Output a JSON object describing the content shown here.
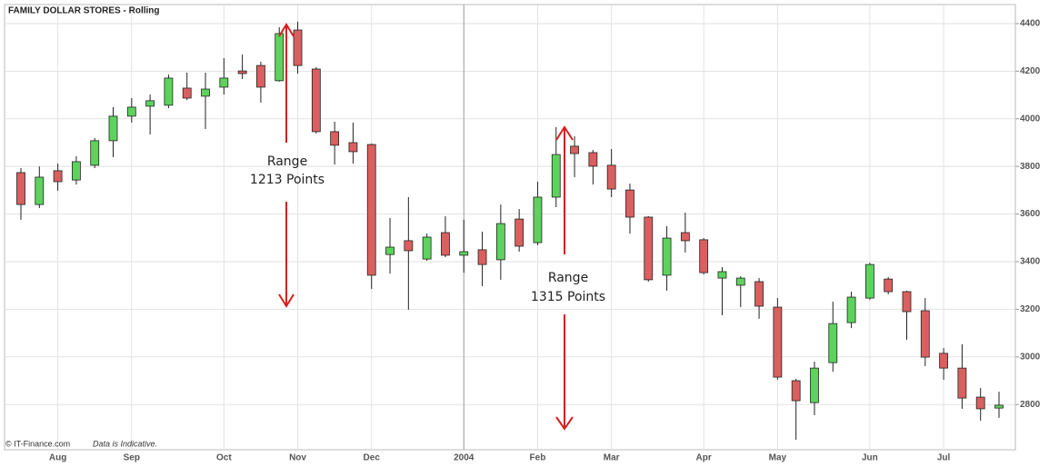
{
  "chart_data": {
    "type": "candlestick",
    "title": "FAMILY DOLLAR STORES - Rolling",
    "categories": [
      null,
      null,
      "Aug",
      null,
      null,
      null,
      "Sep",
      null,
      null,
      null,
      null,
      "Oct",
      null,
      null,
      null,
      "Nov",
      null,
      null,
      null,
      "Dec",
      null,
      null,
      null,
      null,
      "2004",
      null,
      null,
      null,
      "Feb",
      null,
      null,
      null,
      "Mar",
      null,
      null,
      null,
      null,
      "Apr",
      null,
      null,
      null,
      "May",
      null,
      null,
      null,
      null,
      "Jun",
      null,
      null,
      null,
      "Jul",
      null,
      null,
      null
    ],
    "open": [
      3774,
      3640,
      3782,
      3743,
      3805,
      3908,
      4011,
      4053,
      4057,
      4129,
      4095,
      4133,
      4201,
      4224,
      4160,
      4373,
      4209,
      3946,
      3900,
      3892,
      3430,
      3488,
      3411,
      3522,
      3427,
      3450,
      3408,
      3579,
      3480,
      3671,
      3885,
      3858,
      3805,
      3701,
      3587,
      3343,
      3522,
      3492,
      3331,
      3301,
      3316,
      3209,
      2900,
      2808,
      2976,
      3144,
      3247,
      3327,
      3274,
      3194,
      3015,
      2953,
      2831,
      2785
    ],
    "high": [
      3793,
      3800,
      3812,
      3843,
      3919,
      4049,
      4087,
      4102,
      4186,
      4194,
      4194,
      4255,
      4270,
      4240,
      4385,
      4408,
      4217,
      3988,
      3984,
      3896,
      3583,
      3671,
      3518,
      3591,
      3576,
      3526,
      3640,
      3621,
      3736,
      3965,
      3927,
      3869,
      3873,
      3728,
      3591,
      3549,
      3606,
      3499,
      3377,
      3339,
      3331,
      3247,
      2908,
      2980,
      3232,
      3274,
      3396,
      3335,
      3278,
      3247,
      3037,
      3053,
      2869,
      2854
    ],
    "low": [
      3576,
      3625,
      3698,
      3724,
      3793,
      3839,
      3984,
      3934,
      4045,
      4079,
      3957,
      4102,
      4167,
      4068,
      4156,
      4190,
      3938,
      3808,
      3812,
      3285,
      3350,
      3198,
      3404,
      3419,
      3354,
      3297,
      3324,
      3442,
      3469,
      3629,
      3755,
      3724,
      3671,
      3518,
      3316,
      3278,
      3438,
      3346,
      3175,
      3209,
      3160,
      2904,
      2652,
      2755,
      2938,
      3121,
      3240,
      3263,
      3072,
      2961,
      2904,
      2782,
      2732,
      2744
    ],
    "close": [
      3640,
      3755,
      3736,
      3820,
      3908,
      4011,
      4049,
      4076,
      4171,
      4087,
      4125,
      4171,
      4190,
      4133,
      4358,
      4224,
      3946,
      3889,
      3862,
      3343,
      3461,
      3446,
      3503,
      3427,
      3442,
      3388,
      3560,
      3465,
      3671,
      3850,
      3854,
      3801,
      3705,
      3587,
      3324,
      3499,
      3488,
      3354,
      3358,
      3331,
      3213,
      2915,
      2816,
      2953,
      3140,
      3251,
      3388,
      3274,
      3190,
      2999,
      2953,
      2827,
      2782,
      2797
    ],
    "ylim": [
      2610,
      4480
    ],
    "yticks": [
      2800,
      3000,
      3200,
      3400,
      3600,
      3800,
      4000,
      4200,
      4400
    ],
    "grid": true,
    "up_color": "#5dd35d",
    "down_color": "#d9605f",
    "annotations": [
      [
        "Range",
        "1213 Points"
      ],
      [
        "Range",
        "1315 Points"
      ]
    ],
    "source": "© IT-Finance.com",
    "note": "Data is Indicative."
  }
}
